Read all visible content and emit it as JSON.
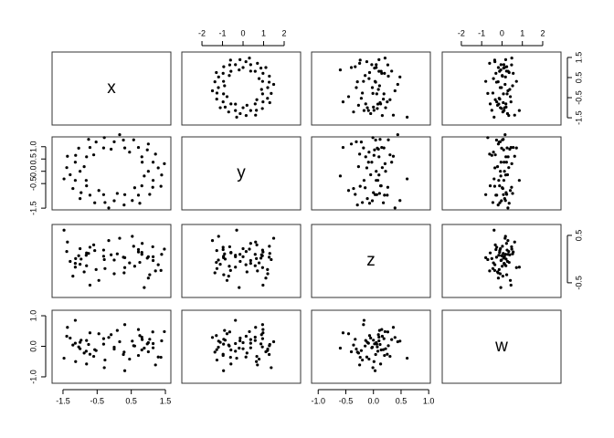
{
  "chart_data": {
    "type": "pairs",
    "color": "#000000",
    "variables": [
      {
        "name": "x",
        "values": [
          1.0,
          1.29,
          1.47,
          1.14,
          0.82,
          1.21,
          0.81,
          0.97,
          1.0,
          0.71,
          0.45,
          0.57,
          0.31,
          0.27,
          0.16,
          0,
          -0.09,
          -0.29,
          -0.31,
          -0.53,
          -0.75,
          -0.71,
          -0.6,
          -1.04,
          -0.81,
          -1.13,
          -1.37,
          -1.14,
          -0.88,
          -1.39,
          -1.0,
          -1.29,
          -1.47,
          -1.14,
          -0.82,
          -1.21,
          -0.81,
          -0.97,
          -1.0,
          -0.71,
          -0.45,
          -0.57,
          -0.31,
          -0.27,
          -0.16,
          0,
          0.09,
          0.29,
          0.31,
          0.53,
          0.75,
          0.71,
          0.6,
          1.04,
          0.81,
          1.13,
          1.37,
          1.14,
          0.88,
          1.39
        ],
        "xlim": [
          -1.82,
          1.66
        ],
        "ylim": [
          -1.86,
          1.77
        ],
        "xaxis": "bottom",
        "xticks": [
          -1.5,
          -0.5,
          0.5,
          1.5
        ],
        "yaxis": "right",
        "yticks": [
          -1.5,
          -0.5,
          0.5,
          1.5
        ]
      },
      {
        "name": "y",
        "values": [
          0,
          0.14,
          0.31,
          0.37,
          0.37,
          0.7,
          0.59,
          0.87,
          1.11,
          0.97,
          0.78,
          1.28,
          0.95,
          1.27,
          1.49,
          1.2,
          0.9,
          1.37,
          0.95,
          1.19,
          1.3,
          0.97,
          0.67,
          0.94,
          0.59,
          0.65,
          0.61,
          0.37,
          0.19,
          0.15,
          0,
          -0.14,
          -0.31,
          -0.37,
          -0.37,
          -0.7,
          -0.59,
          -0.87,
          -1.11,
          -0.97,
          -0.78,
          -1.28,
          -0.95,
          -1.27,
          -1.49,
          -1.2,
          -0.9,
          -1.37,
          -0.95,
          -1.19,
          -1.3,
          -0.97,
          -0.67,
          -0.94,
          -0.59,
          -0.65,
          -0.61,
          -0.37,
          -0.19,
          -0.15
        ],
        "xlim": [
          -2.98,
          2.8
        ],
        "ylim": [
          -1.57,
          1.4
        ],
        "xaxis": "top",
        "xticks": [
          -2,
          -1,
          0,
          1,
          2
        ],
        "yaxis": "left",
        "yticks": [
          -1.5,
          -0.5,
          {
            "value": 0,
            "label": "0.0"
          },
          0.5,
          {
            "value": 1,
            "label": "1.0"
          }
        ]
      },
      {
        "name": "z",
        "values": [
          0.05,
          -0.12,
          0.21,
          -0.03,
          0.33,
          -0.25,
          0.1,
          0.02,
          -0.4,
          0.15,
          -0.08,
          0.27,
          -0.18,
          0.04,
          0.44,
          -0.31,
          0.09,
          -0.01,
          0.19,
          -0.22,
          0.12,
          -0.55,
          0.3,
          0.07,
          -0.14,
          0.01,
          0.36,
          -0.09,
          -0.27,
          0.16,
          0.22,
          -0.05,
          0.61,
          -0.17,
          0.08,
          -0.36,
          0.13,
          0,
          -0.11,
          0.25,
          -0.45,
          0.18,
          0.06,
          -0.2,
          0.39,
          -0.02,
          0.11,
          -0.29,
          0.03,
          0.48,
          -0.07,
          0.2,
          -0.15,
          -0.33,
          0.14,
          0.26,
          -0.24,
          0.05,
          -0.6,
          0.1
        ],
        "xlim": [
          -1.12,
          1.03
        ],
        "ylim": [
          -0.81,
          0.73
        ],
        "xaxis": "bottom",
        "xticks": [
          {
            "value": -1,
            "label": "-1.0"
          },
          -0.5,
          {
            "value": 0,
            "label": "0.0"
          },
          0.5,
          {
            "value": 1,
            "label": "1.0"
          }
        ],
        "yaxis": "right",
        "yticks": [
          -0.5,
          0.5
        ]
      },
      {
        "name": "w",
        "values": [
          0.12,
          -0.35,
          0.48,
          -0.05,
          0.22,
          -0.61,
          0.3,
          0.08,
          -0.18,
          0.55,
          -0.42,
          0.02,
          0.71,
          -0.27,
          0.15,
          -0.09,
          0.38,
          -0.7,
          0.25,
          -0.14,
          0.06,
          0.44,
          -0.33,
          -0.02,
          0.19,
          -0.5,
          0.62,
          0.1,
          -0.22,
          0.33,
          -0.08,
          0.27,
          -0.39,
          0.85,
          -0.16,
          0.04,
          -0.58,
          0.2,
          0.13,
          -0.26,
          0.41,
          -0.11,
          0.07,
          -0.45,
          0.29,
          -0.03,
          0.52,
          -0.19,
          -0.8,
          0.17,
          0.35,
          -0.3,
          0.01,
          0.23,
          -0.12,
          0.47,
          -0.36,
          0.09,
          -0.06,
          0.18
        ],
        "xlim": [
          -2.94,
          2.9
        ],
        "ylim": [
          -1.21,
          1.18
        ],
        "xaxis": "top",
        "xticks": [
          -2,
          -1,
          0,
          1,
          2
        ],
        "yaxis": "left",
        "yticks": [
          {
            "value": -1,
            "label": "-1.0"
          },
          {
            "value": 0,
            "label": "0.0"
          },
          {
            "value": 1,
            "label": "1.0"
          }
        ]
      }
    ]
  }
}
